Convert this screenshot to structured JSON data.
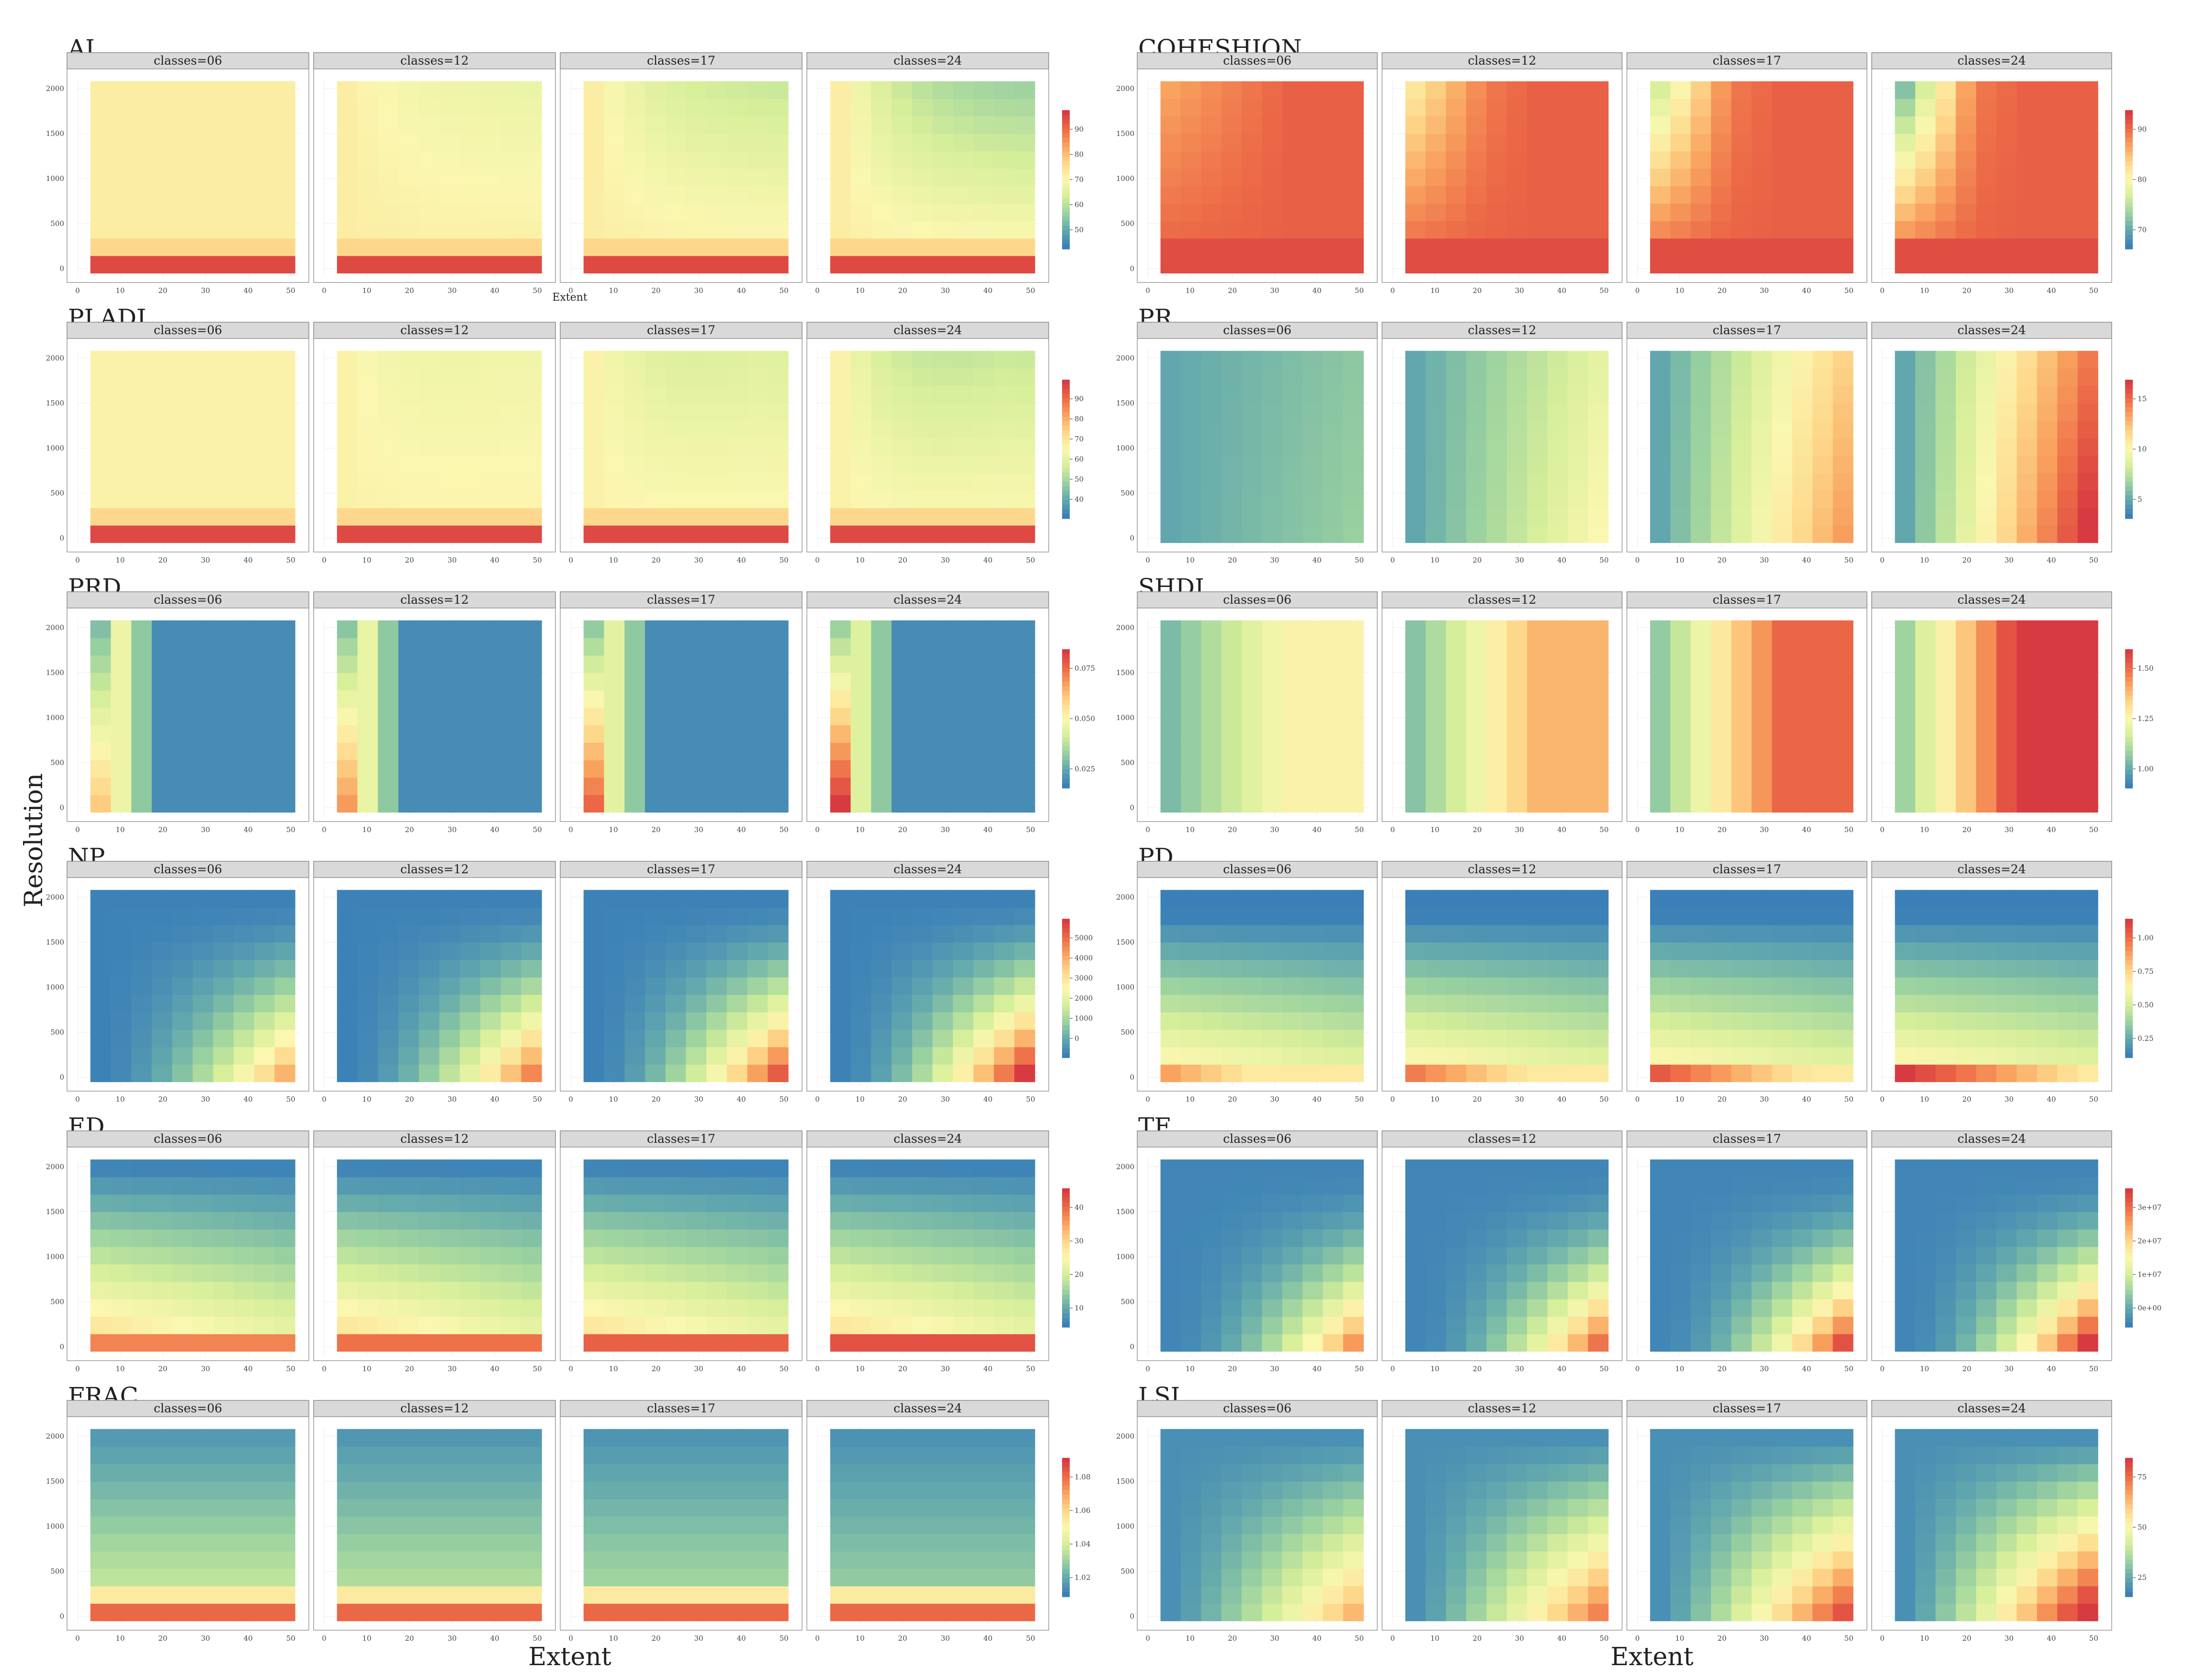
{
  "chart_data": {
    "type": "heatmap",
    "facet_labels": [
      "classes=06",
      "classes=12",
      "classes=17",
      "classes=24"
    ],
    "x_ticks": [
      0,
      10,
      20,
      30,
      40,
      50
    ],
    "y_ticks": [
      0,
      500,
      1000,
      1500,
      2000
    ],
    "xlabel": "Extent",
    "ylabel": "Resolution",
    "xlim": [
      0,
      52
    ],
    "ylim": [
      -100,
      2100
    ],
    "columns": [
      "Extent",
      "Extent"
    ],
    "colormap": [
      "#3a7fb8",
      "#63a9ad",
      "#9dd39f",
      "#d7ef9a",
      "#fbf7b0",
      "#fdd78a",
      "#f9a35f",
      "#ec6a47",
      "#d83a41"
    ],
    "panels": [
      {
        "metric": "AI",
        "legend": [
          "90",
          "80",
          "70",
          "60",
          "50"
        ]
      },
      {
        "metric": "COHESHION",
        "legend": [
          "90",
          "80",
          "70"
        ]
      },
      {
        "metric": "PLADJ",
        "legend": [
          "90",
          "80",
          "70",
          "60",
          "50",
          "40"
        ]
      },
      {
        "metric": "PR",
        "legend": [
          "15",
          "10",
          "5"
        ]
      },
      {
        "metric": "PRD",
        "legend": [
          "0.075",
          "0.050",
          "0.025"
        ]
      },
      {
        "metric": "SHDI",
        "legend": [
          "1.50",
          "1.25",
          "1.00"
        ]
      },
      {
        "metric": "NP",
        "legend": [
          "5000",
          "4000",
          "3000",
          "2000",
          "1000",
          "0"
        ]
      },
      {
        "metric": "PD",
        "legend": [
          "1.00",
          "0.75",
          "0.50",
          "0.25"
        ]
      },
      {
        "metric": "ED",
        "legend": [
          "40",
          "30",
          "20",
          "10"
        ]
      },
      {
        "metric": "TE",
        "legend": [
          "3e+07",
          "2e+07",
          "1e+07",
          "0e+00"
        ]
      },
      {
        "metric": "FRAC",
        "legend": [
          "1.08",
          "1.06",
          "1.04",
          "1.02"
        ]
      },
      {
        "metric": "LSI",
        "legend": [
          "75",
          "50",
          "25"
        ]
      }
    ]
  }
}
